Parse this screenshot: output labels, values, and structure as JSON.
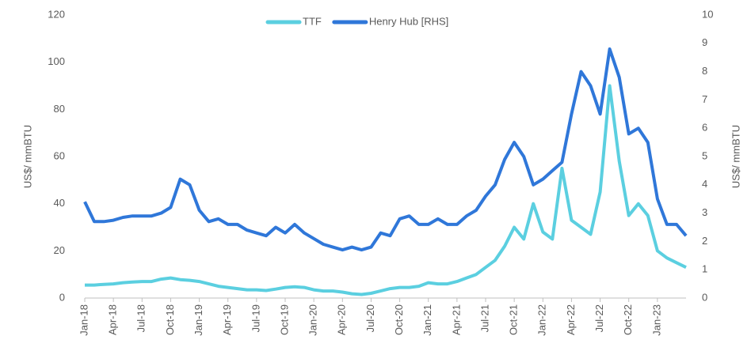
{
  "chart_data": {
    "type": "line",
    "y_label": "US$/ mmBTU",
    "y2_label": "US$/ mmBTU",
    "categories": [
      "Jan-18",
      null,
      null,
      "Apr-18",
      null,
      null,
      "Jul-18",
      null,
      null,
      "Oct-18",
      null,
      null,
      "Jan-19",
      null,
      null,
      "Apr-19",
      null,
      null,
      "Jul-19",
      null,
      null,
      "Oct-19",
      null,
      null,
      "Jan-20",
      null,
      null,
      "Apr-20",
      null,
      null,
      "Jul-20",
      null,
      null,
      "Oct-20",
      null,
      null,
      "Jan-21",
      null,
      null,
      "Apr-21",
      null,
      null,
      "Jul-21",
      null,
      null,
      "Oct-21",
      null,
      null,
      "Jan-22",
      null,
      null,
      "Apr-22",
      null,
      null,
      "Jul-22",
      null,
      null,
      "Oct-22",
      null,
      null,
      "Jan-23",
      null,
      null,
      null
    ],
    "series": [
      {
        "name": "TTF",
        "color": "#5bcfe0",
        "values": [
          5.5,
          5.5,
          5.8,
          6,
          6.5,
          6.8,
          7,
          7,
          8,
          8.5,
          7.8,
          7.5,
          7,
          6,
          5,
          4.5,
          4,
          3.5,
          3.5,
          3.2,
          3.8,
          4.5,
          4.8,
          4.5,
          3.5,
          3,
          3,
          2.5,
          1.8,
          1.5,
          2,
          3,
          4,
          4.5,
          4.5,
          5,
          6.5,
          6,
          6,
          7,
          8.5,
          10,
          13,
          16,
          22,
          30,
          25,
          40,
          28,
          25,
          55,
          33,
          30,
          27,
          45,
          90,
          58,
          35,
          40,
          35,
          20,
          17,
          15,
          13
        ]
      },
      {
        "name": "Henry Hub [RHS]",
        "color": "#2f77d9",
        "axis": "y2",
        "values": [
          3.4,
          2.7,
          2.7,
          2.75,
          2.85,
          2.9,
          2.9,
          2.9,
          3.0,
          3.2,
          4.2,
          4.0,
          3.1,
          2.7,
          2.8,
          2.6,
          2.6,
          2.4,
          2.3,
          2.2,
          2.5,
          2.3,
          2.6,
          2.3,
          2.1,
          1.9,
          1.8,
          1.7,
          1.8,
          1.7,
          1.8,
          2.3,
          2.2,
          2.8,
          2.9,
          2.6,
          2.6,
          2.8,
          2.6,
          2.6,
          2.9,
          3.1,
          3.6,
          4.0,
          4.9,
          5.5,
          5.0,
          4.0,
          4.2,
          4.5,
          4.8,
          6.5,
          8.0,
          7.5,
          6.5,
          8.8,
          7.8,
          5.8,
          6.0,
          5.5,
          3.5,
          2.6,
          2.6,
          2.2
        ]
      }
    ],
    "ylim": [
      0,
      120
    ],
    "yticks": [
      0,
      20,
      40,
      60,
      80,
      100,
      120
    ],
    "y2lim": [
      0,
      10
    ],
    "y2ticks": [
      0,
      1,
      2,
      3,
      4,
      5,
      6,
      7,
      8,
      9,
      10
    ],
    "legend": "top"
  }
}
